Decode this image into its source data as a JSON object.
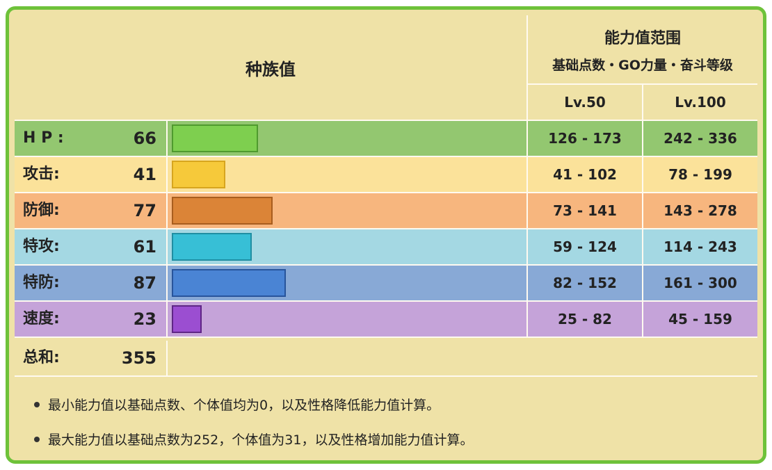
{
  "header": {
    "base_stats_label": "种族值",
    "range_title": "能力值范围",
    "range_subtitle": "基础点数・GO力量・奋斗等级",
    "lv50_label": "Lv.50",
    "lv100_label": "Lv.100"
  },
  "stats": [
    {
      "name": "H P :",
      "value": "66",
      "num": 66,
      "lv50": "126 - 173",
      "lv100": "242 - 336",
      "row_color": "#93c770",
      "bar_color": "#7ecf4f",
      "bar_border": "#4f9a2e"
    },
    {
      "name": "攻击:",
      "value": "41",
      "num": 41,
      "lv50": "41 - 102",
      "lv100": "78 - 199",
      "row_color": "#fbe29a",
      "bar_color": "#f6c93a",
      "bar_border": "#d7a51e"
    },
    {
      "name": "防御:",
      "value": "77",
      "num": 77,
      "lv50": "73 - 141",
      "lv100": "143 - 278",
      "row_color": "#f7b67e",
      "bar_color": "#db8437",
      "bar_border": "#a85d1e"
    },
    {
      "name": "特攻:",
      "value": "61",
      "num": 61,
      "lv50": "59 - 124",
      "lv100": "114 - 243",
      "row_color": "#a4d8e3",
      "bar_color": "#37bfd6",
      "bar_border": "#1f8ea2"
    },
    {
      "name": "特防:",
      "value": "87",
      "num": 87,
      "lv50": "82 - 152",
      "lv100": "161 - 300",
      "row_color": "#88a9d6",
      "bar_color": "#4a84d4",
      "bar_border": "#27549b"
    },
    {
      "name": "速度:",
      "value": "23",
      "num": 23,
      "lv50": "25 - 82",
      "lv100": "45 - 159",
      "row_color": "#c5a3d9",
      "bar_color": "#9b4ed1",
      "bar_border": "#5e2585"
    }
  ],
  "total": {
    "name": "总和:",
    "value": "355"
  },
  "notes": [
    "最小能力值以基础点数、个体值均为0，以及性格降低能力值计算。",
    "最大能力值以基础点数为252，个体值为31，以及性格增加能力值计算。"
  ],
  "colors": {
    "border": "#6ec23a",
    "panel": "#efe2a7"
  }
}
